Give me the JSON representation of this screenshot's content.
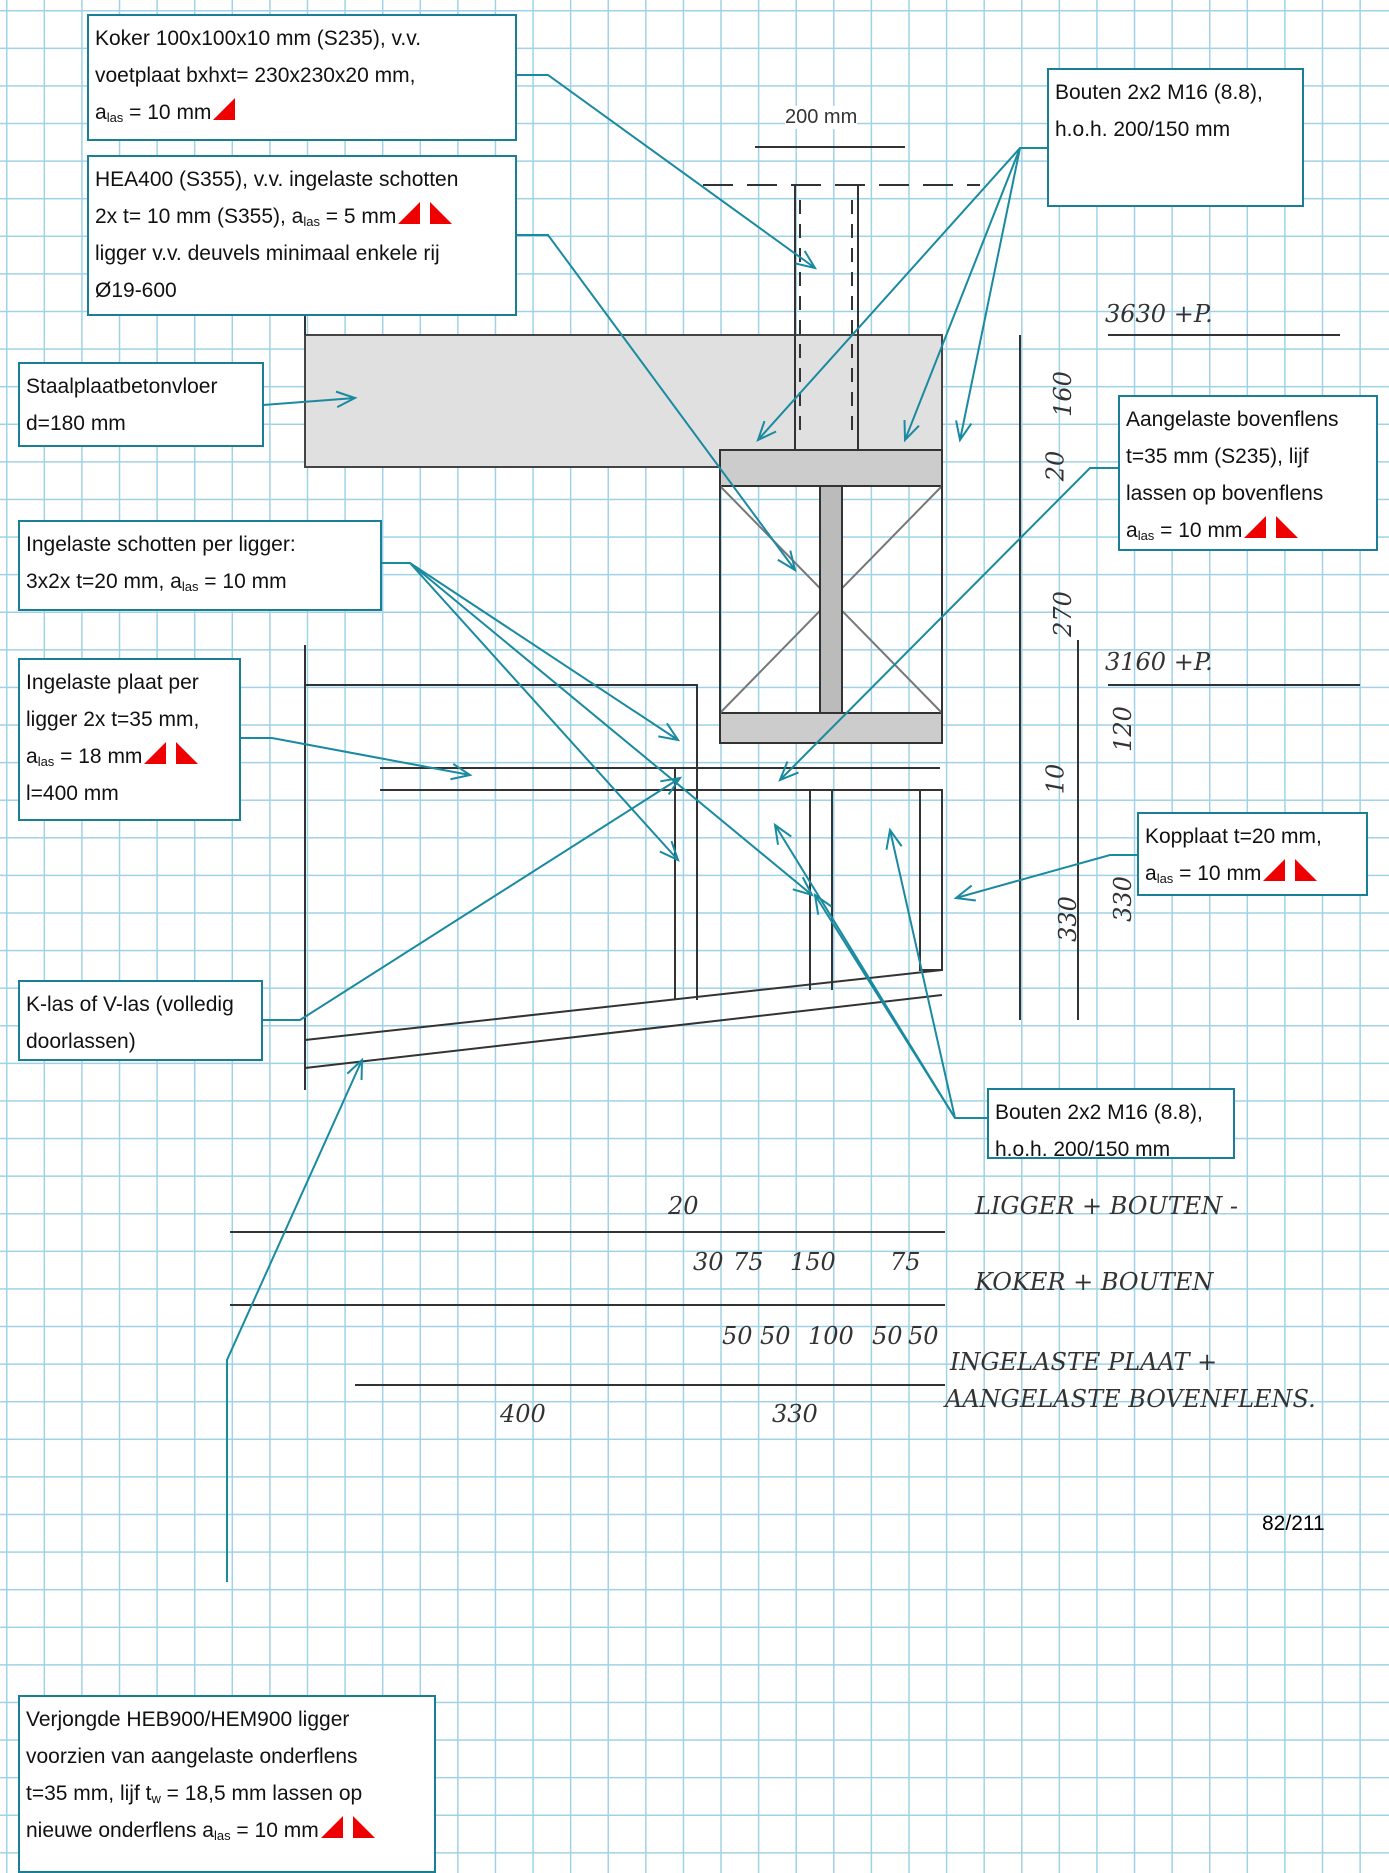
{
  "annotations": [
    {
      "lines": [
        "Koker 100x100x10 mm (S235), v.v.",
        "voetplaat bxhxt= 230x230x20 mm,",
        [
          "a",
          {
            "sub": "las"
          },
          " = 10 mm"
        ]
      ]
    },
    {
      "lines": [
        "HEA400 (S355), v.v. ingelaste schotten",
        [
          "2x t= 10 mm (S355), a",
          {
            "sub": "las"
          },
          " = 5 mm"
        ],
        "ligger v.v. deuvels minimaal enkele rij",
        "Ø19-600"
      ]
    },
    {
      "lines": [
        "Staalplaatbetonvloer",
        "d=180 mm"
      ]
    },
    {
      "lines": [
        "Ingelaste schotten per ligger:",
        [
          "3x2x t=20 mm, a",
          {
            "sub": "las"
          },
          " = 10 mm"
        ]
      ]
    },
    {
      "lines": [
        "Ingelaste plaat per",
        "ligger 2x t=35 mm,",
        [
          "a",
          {
            "sub": "las"
          },
          " = 18 mm"
        ],
        "l=400 mm"
      ]
    },
    {
      "lines": [
        "K-las of V-las (volledig",
        "doorlassen)"
      ]
    },
    {
      "lines": [
        "Verjongde HEB900/HEM900 ligger",
        "voorzien van aangelaste onderflens",
        [
          "t=35 mm, lijf t",
          {
            "sub": "w"
          },
          " = 18,5 mm lassen op"
        ],
        [
          "nieuwe onderflens a",
          {
            "sub": "las"
          },
          " = 10 mm"
        ]
      ]
    },
    {
      "lines": [
        "Bouten 2x2 M16 (8.8),",
        "h.o.h. 200/150 mm"
      ]
    },
    {
      "lines": [
        "Aangelaste bovenflens",
        "t=35 mm (S235), lijf",
        "lassen op bovenflens",
        [
          "a",
          {
            "sub": "las"
          },
          " = 10 mm"
        ]
      ]
    },
    {
      "lines": [
        "Kopplaat t=20 mm,",
        [
          "a",
          {
            "sub": "las"
          },
          " = 10 mm"
        ]
      ]
    },
    {
      "lines": [
        "Bouten 2x2 M16 (8.8),",
        "h.o.h. 200/150 mm"
      ]
    }
  ],
  "sketch_labels": [
    "200 mm",
    "3630 +P.",
    "3160 +P.",
    "160",
    "20",
    "270",
    "120",
    "10",
    "330",
    "330",
    "20",
    "30",
    "75",
    "150",
    "75",
    "50",
    "50",
    "100",
    "50",
    "50",
    "400",
    "330",
    "LIGGER + BOUTEN -",
    "KOKER + BOUTEN",
    "INGELASTE PLAAT +",
    "AANGELASTE BOVENFLENS."
  ],
  "page_number": "82/211"
}
